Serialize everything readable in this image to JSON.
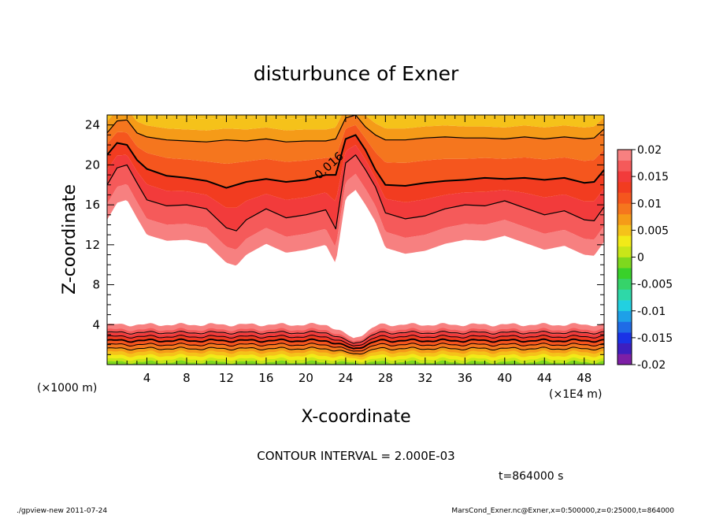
{
  "chart_data": {
    "type": "heatmap",
    "title": "disturbunce of Exner",
    "xlabel": "X-coordinate",
    "ylabel": "Z-coordinate",
    "x_unit_label": "(×1E4 m)",
    "y_unit_label": "(×1000 m)",
    "xlim": [
      0,
      50
    ],
    "ylim": [
      0,
      25
    ],
    "x_ticks": [
      4,
      8,
      12,
      16,
      20,
      24,
      28,
      32,
      36,
      40,
      44,
      48
    ],
    "y_ticks": [
      4,
      8,
      12,
      16,
      20,
      24
    ],
    "contour_interval_label": "CONTOUR INTERVAL = 2.000E-03",
    "contour_label": "0.016",
    "time_label": "t=864000 s",
    "colorbar": {
      "ticks": [
        "0.02",
        "0.015",
        "0.01",
        "0.005",
        "0",
        "-0.005",
        "-0.01",
        "-0.015",
        "-0.02"
      ],
      "range": [
        -0.02,
        0.02
      ],
      "colors": [
        "#7d1fa6",
        "#3d1fbf",
        "#1a33e6",
        "#1f6be6",
        "#1ea0e8",
        "#22d0e0",
        "#2ed8a8",
        "#36d36a",
        "#39d12a",
        "#7ed81e",
        "#c8e619",
        "#f2ea18",
        "#f5c21a",
        "#f59b18",
        "#f5761e",
        "#f5561e",
        "#f23c20",
        "#f23b3b",
        "#f55a5a",
        "#f78080"
      ]
    },
    "upper_contours": [
      {
        "level": 0.012,
        "x": [
          0,
          1,
          2,
          3,
          4,
          6,
          8,
          10,
          12,
          13,
          14,
          16,
          18,
          20,
          22,
          23,
          24,
          25,
          26,
          27,
          28,
          30,
          32,
          34,
          36,
          38,
          40,
          42,
          44,
          46,
          48,
          49,
          50
        ],
        "z": [
          18,
          19.7,
          20,
          18.2,
          16.5,
          15.9,
          16,
          15.6,
          13.7,
          13.4,
          14.5,
          15.6,
          14.7,
          15,
          15.5,
          13.6,
          20.2,
          21,
          19.5,
          17.8,
          15.2,
          14.6,
          14.9,
          15.6,
          16,
          15.9,
          16.4,
          15.7,
          15,
          15.4,
          14.5,
          14.4,
          15.8
        ]
      },
      {
        "level": 0.016,
        "x": [
          0,
          1,
          2,
          3,
          4,
          6,
          8,
          10,
          12,
          14,
          16,
          18,
          20,
          22,
          23,
          24,
          25,
          26,
          27,
          28,
          30,
          32,
          34,
          36,
          38,
          40,
          42,
          44,
          46,
          48,
          49,
          50
        ],
        "z": [
          21,
          22.2,
          22,
          20.5,
          19.6,
          18.9,
          18.7,
          18.4,
          17.7,
          18.3,
          18.6,
          18.3,
          18.5,
          19,
          19,
          22.6,
          23,
          21.5,
          19.5,
          18,
          17.9,
          18.2,
          18.4,
          18.5,
          18.7,
          18.6,
          18.7,
          18.5,
          18.7,
          18.2,
          18.3,
          19.5
        ]
      },
      {
        "level": 0.018,
        "x": [
          0,
          1,
          2,
          3,
          4,
          6,
          8,
          10,
          12,
          14,
          16,
          18,
          20,
          22,
          23,
          24,
          25,
          26,
          27,
          28,
          30,
          32,
          34,
          36,
          38,
          40,
          42,
          44,
          46,
          48,
          49,
          50
        ],
        "z": [
          23.2,
          24.4,
          24.5,
          23.2,
          22.8,
          22.5,
          22.4,
          22.3,
          22.5,
          22.4,
          22.6,
          22.3,
          22.4,
          22.4,
          22.6,
          24.7,
          25,
          23.8,
          23,
          22.5,
          22.5,
          22.7,
          22.8,
          22.7,
          22.7,
          22.6,
          22.8,
          22.6,
          22.8,
          22.6,
          22.7,
          23.6
        ]
      }
    ],
    "lower_contours": [
      {
        "level": 0.012,
        "z": 3.2
      },
      {
        "level": 0.014,
        "z": 2.8
      },
      {
        "level": 0.016,
        "z": 2.4
      },
      {
        "level": 0.018,
        "z": 2.0
      },
      {
        "level": 0.02,
        "z": 1.6
      }
    ],
    "footer_left": "./gpview-new  2011-07-24",
    "footer_right": "MarsCond_Exner.nc@Exner,x=0:500000,z=0:25000,t=864000"
  }
}
